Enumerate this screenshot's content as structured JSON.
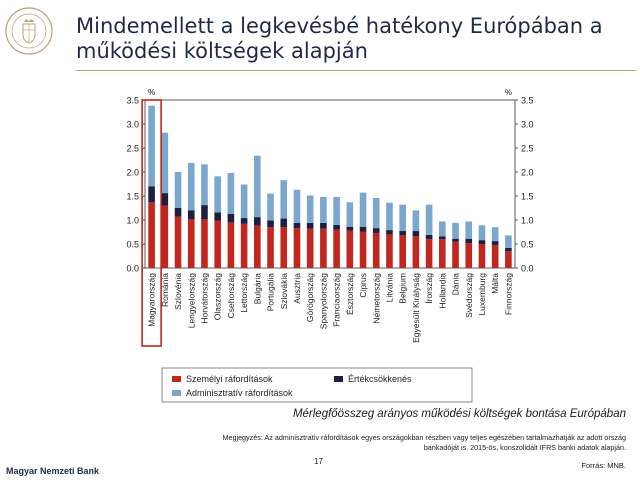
{
  "slide": {
    "title": "Mindemellett a legkevésbé hatékony Európában a működési költségek alapján",
    "caption": "Mérlegfőösszeg arányos működési költségek bontása Európában",
    "note": "Megjegyzés: Az adminisztratív ráfordítások egyes országokban részben vagy teljes egészében tartalmazhatják az adott ország bankadóját is. 2015-ös, konszolidált IFRS banki adatok alapján.",
    "source": "Forrás: MNB.",
    "bank_name": "Magyar Nemzeti Bank",
    "page_number": "17"
  },
  "chart_data": {
    "type": "bar",
    "stacked": true,
    "categories": [
      "Magyarország",
      "Románia",
      "Szlovénia",
      "Lengyelország",
      "Horvátország",
      "Olaszország",
      "Csehország",
      "Lettország",
      "Bulgária",
      "Portugália",
      "Szlovákia",
      "Ausztria",
      "Görögország",
      "Spanyolország",
      "Franciaország",
      "Észtország",
      "Ciprus",
      "Németország",
      "Litvánia",
      "Belgium",
      "Egyesült Királyság",
      "Írország",
      "Hollandia",
      "Dánia",
      "Svédország",
      "Luxemburg",
      "Málta",
      "Finnország"
    ],
    "series": [
      {
        "name": "Személyi ráfordítások",
        "color": "#c0271f",
        "values": [
          1.37,
          1.3,
          1.07,
          1.02,
          1.02,
          0.99,
          0.95,
          0.92,
          0.88,
          0.85,
          0.85,
          0.83,
          0.82,
          0.82,
          0.8,
          0.78,
          0.76,
          0.73,
          0.7,
          0.68,
          0.66,
          0.6,
          0.6,
          0.55,
          0.52,
          0.5,
          0.48,
          0.35
        ]
      },
      {
        "name": "Értékcsökkenés",
        "color": "#1c1f3f",
        "values": [
          0.33,
          0.26,
          0.18,
          0.18,
          0.29,
          0.17,
          0.18,
          0.12,
          0.18,
          0.14,
          0.18,
          0.11,
          0.12,
          0.12,
          0.1,
          0.08,
          0.1,
          0.1,
          0.09,
          0.09,
          0.11,
          0.09,
          0.06,
          0.06,
          0.09,
          0.08,
          0.08,
          0.07
        ]
      },
      {
        "name": "Adminisztratív ráfordítások",
        "color": "#7ba7cf",
        "values": [
          1.68,
          1.26,
          0.75,
          0.99,
          0.85,
          0.75,
          0.85,
          0.7,
          1.28,
          0.56,
          0.8,
          0.69,
          0.57,
          0.54,
          0.58,
          0.51,
          0.71,
          0.63,
          0.57,
          0.55,
          0.43,
          0.63,
          0.31,
          0.33,
          0.36,
          0.31,
          0.29,
          0.26
        ]
      }
    ],
    "ylim": [
      0,
      3.5
    ],
    "yticks": [
      "0.0",
      "0.5",
      "1.0",
      "1.5",
      "2.0",
      "2.5",
      "3.0",
      "3.5"
    ],
    "y_unit_left": "%",
    "y_unit_right": "%",
    "highlight_category": "Magyarország",
    "legend_position": "bottom",
    "grid": false
  },
  "colors": {
    "title": "#1f2a44",
    "rule": "#b9a27a",
    "highlight_box": "#c0271f"
  }
}
